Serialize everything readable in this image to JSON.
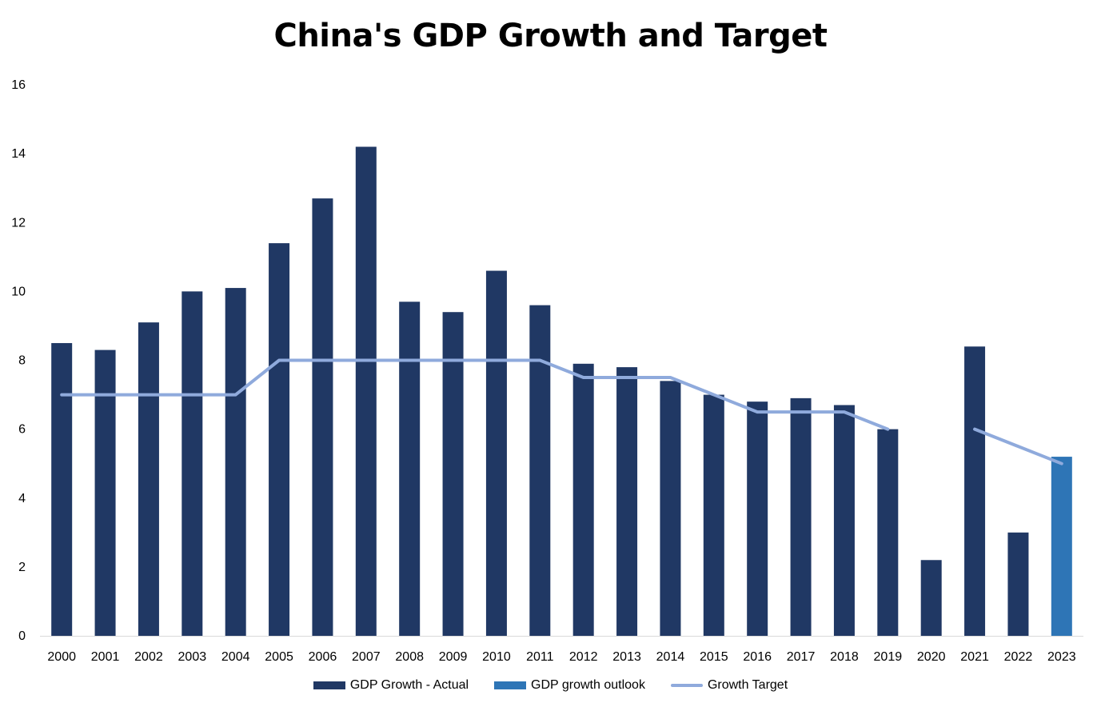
{
  "chart_data": {
    "type": "bar",
    "title": "China's GDP Growth and Target",
    "xlabel": "",
    "ylabel": "",
    "ylim": [
      0,
      16
    ],
    "yticks": [
      0,
      2,
      4,
      6,
      8,
      10,
      12,
      14,
      16
    ],
    "categories": [
      "2000",
      "2001",
      "2002",
      "2003",
      "2004",
      "2005",
      "2006",
      "2007",
      "2008",
      "2009",
      "2010",
      "2011",
      "2012",
      "2013",
      "2014",
      "2015",
      "2016",
      "2017",
      "2018",
      "2019",
      "2020",
      "2021",
      "2022",
      "2023"
    ],
    "grid": false,
    "legend_position": "bottom",
    "series": [
      {
        "name": "GDP Growth - Actual",
        "type": "bar",
        "color": "#203864",
        "values": [
          8.5,
          8.3,
          9.1,
          10.0,
          10.1,
          11.4,
          12.7,
          14.2,
          9.7,
          9.4,
          10.6,
          9.6,
          7.9,
          7.8,
          7.4,
          7.0,
          6.8,
          6.9,
          6.7,
          6.0,
          2.2,
          8.4,
          3.0,
          null
        ]
      },
      {
        "name": "GDP growth outlook",
        "type": "bar",
        "color": "#2E75B6",
        "values": [
          null,
          null,
          null,
          null,
          null,
          null,
          null,
          null,
          null,
          null,
          null,
          null,
          null,
          null,
          null,
          null,
          null,
          null,
          null,
          null,
          null,
          null,
          null,
          5.2
        ]
      },
      {
        "name": "Growth Target",
        "type": "line",
        "color": "#8FAADC",
        "values": [
          7,
          7,
          7,
          7,
          7,
          8,
          8,
          8,
          8,
          8,
          8,
          8,
          7.5,
          7.5,
          7.5,
          7,
          6.5,
          6.5,
          6.5,
          6,
          null,
          6,
          5.5,
          5
        ]
      }
    ]
  }
}
